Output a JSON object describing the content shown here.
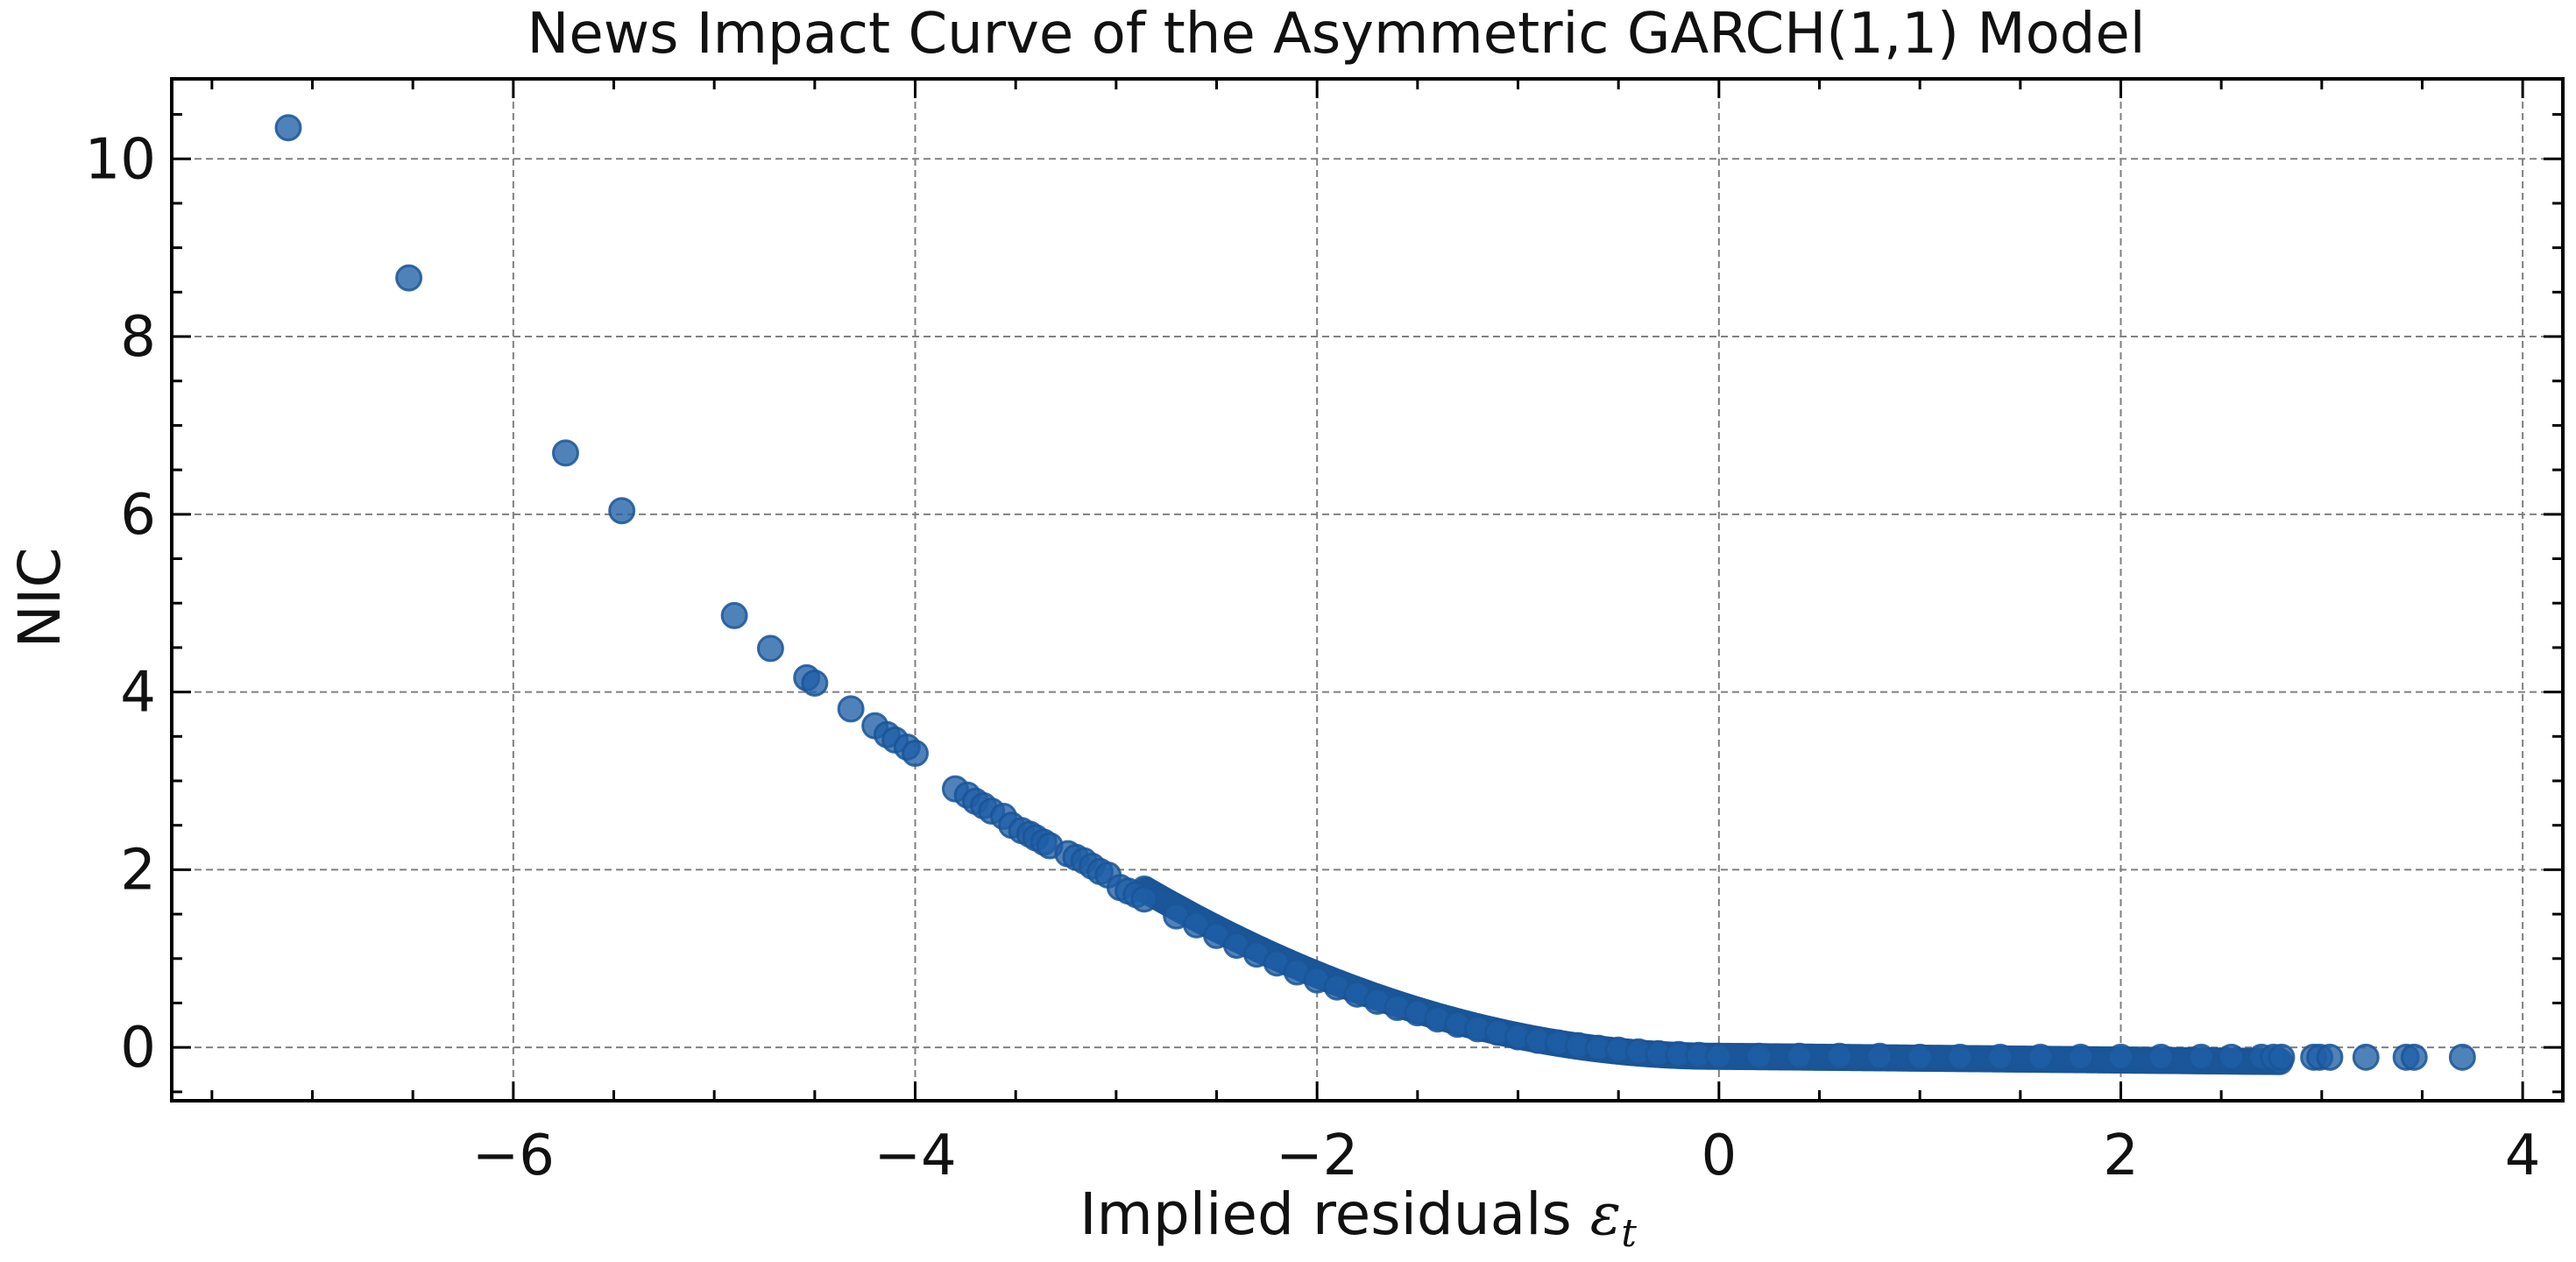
{
  "chart_data": {
    "type": "scatter",
    "title": "News Impact Curve of the Asymmetric GARCH(1,1) Model",
    "xlabel": "Implied residuals",
    "xlabel_symbol": "ε",
    "xlabel_subscript": "t",
    "ylabel": "NIC",
    "xlim": [
      -7.7,
      4.2
    ],
    "ylim": [
      -0.6,
      10.9
    ],
    "x_ticks": [
      -6,
      -4,
      -2,
      0,
      2,
      4
    ],
    "x_tick_labels": [
      "−6",
      "−4",
      "−2",
      "0",
      "2",
      "4"
    ],
    "y_ticks": [
      0,
      2,
      4,
      6,
      8,
      10
    ],
    "y_tick_labels": [
      "0",
      "2",
      "4",
      "6",
      "8",
      "10"
    ],
    "grid": true,
    "color": "#1f5fa6",
    "curve": {
      "a": 0.23,
      "b": -0.021,
      "c": -0.1
    },
    "points": [
      {
        "x": -7.12,
        "y": 10.35
      },
      {
        "x": -6.52,
        "y": 8.66
      },
      {
        "x": -5.74,
        "y": 6.69
      },
      {
        "x": -5.46,
        "y": 6.04
      },
      {
        "x": -4.9,
        "y": 4.86
      },
      {
        "x": -4.72,
        "y": 4.49
      },
      {
        "x": -4.54,
        "y": 4.16
      },
      {
        "x": -4.5,
        "y": 4.1
      },
      {
        "x": -4.32,
        "y": 3.81
      },
      {
        "x": -4.2,
        "y": 3.62
      },
      {
        "x": -4.14,
        "y": 3.52
      },
      {
        "x": -4.1,
        "y": 3.46
      },
      {
        "x": -4.04,
        "y": 3.38
      },
      {
        "x": -4.0,
        "y": 3.31
      },
      {
        "x": -3.8,
        "y": 2.91
      },
      {
        "x": -3.74,
        "y": 2.84
      },
      {
        "x": -3.7,
        "y": 2.77
      },
      {
        "x": -3.66,
        "y": 2.72
      },
      {
        "x": -3.62,
        "y": 2.66
      },
      {
        "x": -3.56,
        "y": 2.6
      },
      {
        "x": -3.52,
        "y": 2.5
      },
      {
        "x": -3.47,
        "y": 2.44
      },
      {
        "x": -3.43,
        "y": 2.4
      },
      {
        "x": -3.4,
        "y": 2.36
      },
      {
        "x": -3.36,
        "y": 2.31
      },
      {
        "x": -3.33,
        "y": 2.27
      },
      {
        "x": -3.24,
        "y": 2.18
      },
      {
        "x": -3.2,
        "y": 2.14
      },
      {
        "x": -3.16,
        "y": 2.1
      },
      {
        "x": -3.12,
        "y": 2.04
      },
      {
        "x": -3.08,
        "y": 1.98
      },
      {
        "x": -3.04,
        "y": 1.94
      },
      {
        "x": -2.98,
        "y": 1.8
      },
      {
        "x": -2.94,
        "y": 1.76
      },
      {
        "x": -2.9,
        "y": 1.72
      },
      {
        "x": -2.86,
        "y": 1.67
      },
      {
        "x": -2.7,
        "y": 1.48
      },
      {
        "x": -2.6,
        "y": 1.38
      },
      {
        "x": -2.5,
        "y": 1.26
      },
      {
        "x": -2.4,
        "y": 1.15
      },
      {
        "x": -2.3,
        "y": 1.05
      },
      {
        "x": -2.2,
        "y": 0.95
      },
      {
        "x": -2.1,
        "y": 0.85
      },
      {
        "x": -2.0,
        "y": 0.76
      },
      {
        "x": -1.9,
        "y": 0.68
      },
      {
        "x": -1.8,
        "y": 0.6
      },
      {
        "x": -1.7,
        "y": 0.52
      },
      {
        "x": -1.6,
        "y": 0.45
      },
      {
        "x": -1.5,
        "y": 0.39
      },
      {
        "x": -1.4,
        "y": 0.32
      },
      {
        "x": -1.3,
        "y": 0.26
      },
      {
        "x": -1.2,
        "y": 0.21
      },
      {
        "x": -1.1,
        "y": 0.17
      },
      {
        "x": -1.0,
        "y": 0.12
      },
      {
        "x": -0.9,
        "y": 0.08
      },
      {
        "x": -0.8,
        "y": 0.05
      },
      {
        "x": -0.7,
        "y": 0.02
      },
      {
        "x": -0.6,
        "y": -0.01
      },
      {
        "x": -0.5,
        "y": -0.03
      },
      {
        "x": -0.4,
        "y": -0.05
      },
      {
        "x": -0.3,
        "y": -0.07
      },
      {
        "x": -0.2,
        "y": -0.08
      },
      {
        "x": -0.1,
        "y": -0.09
      },
      {
        "x": 0.0,
        "y": -0.1
      },
      {
        "x": 0.2,
        "y": -0.1
      },
      {
        "x": 0.4,
        "y": -0.1
      },
      {
        "x": 0.6,
        "y": -0.1
      },
      {
        "x": 0.8,
        "y": -0.1
      },
      {
        "x": 1.0,
        "y": -0.11
      },
      {
        "x": 1.2,
        "y": -0.11
      },
      {
        "x": 1.4,
        "y": -0.11
      },
      {
        "x": 1.6,
        "y": -0.11
      },
      {
        "x": 1.8,
        "y": -0.11
      },
      {
        "x": 2.0,
        "y": -0.11
      },
      {
        "x": 2.2,
        "y": -0.11
      },
      {
        "x": 2.4,
        "y": -0.11
      },
      {
        "x": 2.55,
        "y": -0.11
      },
      {
        "x": 2.7,
        "y": -0.11
      },
      {
        "x": 2.76,
        "y": -0.11
      },
      {
        "x": 2.8,
        "y": -0.11
      },
      {
        "x": 2.96,
        "y": -0.11
      },
      {
        "x": 2.99,
        "y": -0.11
      },
      {
        "x": 3.04,
        "y": -0.11
      },
      {
        "x": 3.22,
        "y": -0.11
      },
      {
        "x": 3.42,
        "y": -0.11
      },
      {
        "x": 3.46,
        "y": -0.11
      },
      {
        "x": 3.7,
        "y": -0.11
      }
    ]
  }
}
